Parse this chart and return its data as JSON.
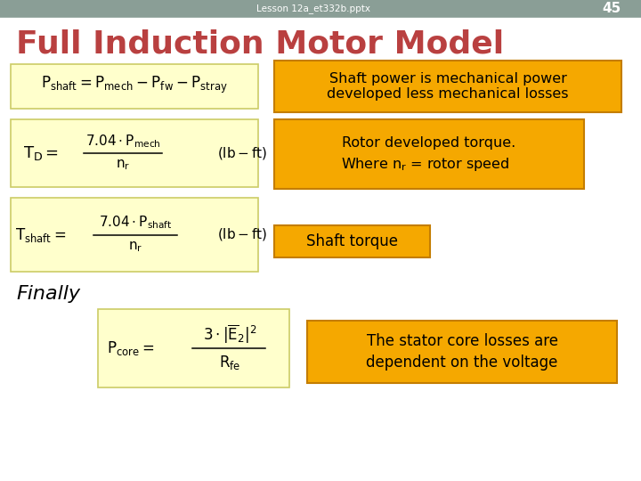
{
  "background_color": "#ffffff",
  "header_color": "#8a9e96",
  "header_text": "Lesson 12a_et332b.pptx",
  "page_number": "45",
  "title": "Full Induction Motor Model",
  "title_color": "#b94040",
  "yellow_bg": "#ffffcc",
  "orange_bg": "#f5a800",
  "orange_edge": "#c47d00",
  "yellow_edge": "#cccc66",
  "box1_text": "Shaft power is mechanical power\ndeveloped less mechanical losses",
  "box2_line1": "Rotor developed torque.",
  "box2_line2": "Where n",
  "box2_line2b": "r",
  "box2_line2c": " = rotor speed",
  "box3_text": "Shaft torque",
  "box4_line1": "The stator core losses are",
  "box4_line2": "dependent on the voltage",
  "finally_text": "Finally"
}
